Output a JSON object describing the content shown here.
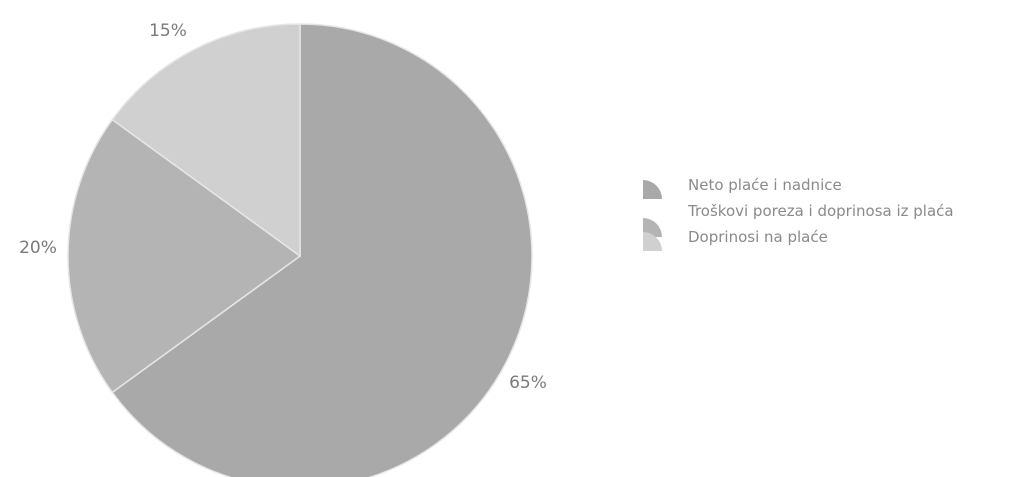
{
  "chart_data": {
    "type": "pie",
    "categories": [
      "Neto plaće i nadnice",
      "Troškovi poreza i doprinosa iz plaća",
      "Doprinosi na plaće"
    ],
    "values": [
      65,
      20,
      15
    ],
    "labels": [
      "65%",
      "20%",
      "15%"
    ],
    "colors": [
      "#a9a9a9",
      "#b4b4b4",
      "#d0d0d0"
    ],
    "legend_position": "right"
  }
}
